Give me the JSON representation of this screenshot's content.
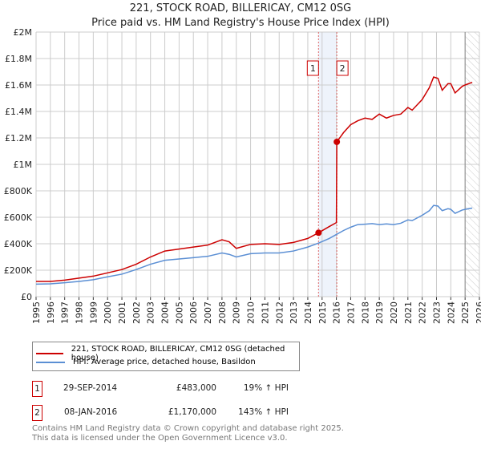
{
  "chart_data": {
    "type": "line",
    "title": "221, STOCK ROAD, BILLERICAY, CM12 0SG",
    "subtitle": "Price paid vs. HM Land Registry's House Price Index (HPI)",
    "xlim": [
      1995,
      2026
    ],
    "ylim": [
      0,
      2000000
    ],
    "x_ticks": [
      "1995",
      "1996",
      "1997",
      "1998",
      "1999",
      "2000",
      "2001",
      "2002",
      "2003",
      "2004",
      "2005",
      "2006",
      "2007",
      "2008",
      "2009",
      "2010",
      "2011",
      "2012",
      "2013",
      "2014",
      "2015",
      "2016",
      "2017",
      "2018",
      "2019",
      "2020",
      "2021",
      "2022",
      "2023",
      "2024",
      "2025",
      "2026"
    ],
    "y_ticks": [
      {
        "v": 0,
        "label": "£0"
      },
      {
        "v": 200000,
        "label": "£200K"
      },
      {
        "v": 400000,
        "label": "£400K"
      },
      {
        "v": 600000,
        "label": "£600K"
      },
      {
        "v": 800000,
        "label": "£800K"
      },
      {
        "v": 1000000,
        "label": "£1M"
      },
      {
        "v": 1200000,
        "label": "£1.2M"
      },
      {
        "v": 1400000,
        "label": "£1.4M"
      },
      {
        "v": 1600000,
        "label": "£1.6M"
      },
      {
        "v": 1800000,
        "label": "£1.8M"
      },
      {
        "v": 2000000,
        "label": "£2M"
      }
    ],
    "grid": true,
    "colors": {
      "property": "#cc0000",
      "hpi": "#5b8fd4"
    },
    "series": [
      {
        "name": "221, STOCK ROAD, BILLERICAY, CM12 0SG (detached house)",
        "key": "property",
        "x": [
          1995,
          1996,
          1997,
          1998,
          1999,
          2000,
          2001,
          2002,
          2003,
          2004,
          2005,
          2006,
          2007,
          2008,
          2008.5,
          2009,
          2010,
          2011,
          2012,
          2013,
          2014,
          2014.75,
          2015.5,
          2016.0,
          2016.03,
          2016.5,
          2017,
          2017.5,
          2018,
          2018.5,
          2019,
          2019.5,
          2020,
          2020.5,
          2021,
          2021.3,
          2022,
          2022.5,
          2022.8,
          2023.1,
          2023.4,
          2023.8,
          2024.0,
          2024.3,
          2024.8,
          2025,
          2025.5
        ],
        "y": [
          115000,
          115000,
          125000,
          140000,
          155000,
          180000,
          205000,
          245000,
          300000,
          345000,
          360000,
          375000,
          390000,
          430000,
          415000,
          365000,
          395000,
          400000,
          395000,
          410000,
          440000,
          483000,
          530000,
          560000,
          1170000,
          1240000,
          1300000,
          1330000,
          1350000,
          1340000,
          1380000,
          1350000,
          1370000,
          1380000,
          1430000,
          1410000,
          1490000,
          1580000,
          1660000,
          1650000,
          1560000,
          1610000,
          1610000,
          1540000,
          1590000,
          1600000,
          1620000
        ]
      },
      {
        "name": "HPI: Average price, detached house, Basildon",
        "key": "hpi",
        "x": [
          1995,
          1996,
          1997,
          1998,
          1999,
          2000,
          2001,
          2002,
          2003,
          2004,
          2005,
          2006,
          2007,
          2008,
          2008.5,
          2009,
          2010,
          2011,
          2012,
          2013,
          2014,
          2014.75,
          2015.5,
          2016.0,
          2016.5,
          2017,
          2017.5,
          2018,
          2018.5,
          2019,
          2019.5,
          2020,
          2020.5,
          2021,
          2021.3,
          2022,
          2022.5,
          2022.8,
          2023.1,
          2023.4,
          2023.8,
          2024.0,
          2024.3,
          2024.8,
          2025,
          2025.5
        ],
        "y": [
          95000,
          97000,
          105000,
          115000,
          128000,
          150000,
          170000,
          205000,
          245000,
          275000,
          285000,
          295000,
          305000,
          330000,
          320000,
          300000,
          325000,
          330000,
          330000,
          345000,
          375000,
          405000,
          440000,
          470000,
          500000,
          525000,
          545000,
          548000,
          552000,
          545000,
          550000,
          545000,
          555000,
          580000,
          575000,
          615000,
          650000,
          690000,
          685000,
          650000,
          665000,
          660000,
          630000,
          655000,
          660000,
          670000
        ]
      }
    ],
    "sales": [
      {
        "id": "1",
        "x": 2014.75,
        "y": 483000,
        "date": "29-SEP-2014",
        "price": "£483,000",
        "hpi": "19% ↑ HPI"
      },
      {
        "id": "2",
        "x": 2016.03,
        "y": 1170000,
        "date": "08-JAN-2016",
        "price": "£1,170,000",
        "hpi": "143% ↑ HPI"
      }
    ],
    "forecast_from": 2025.0
  },
  "footer": {
    "line1": "Contains HM Land Registry data © Crown copyright and database right 2025.",
    "line2": "This data is licensed under the Open Government Licence v3.0."
  }
}
